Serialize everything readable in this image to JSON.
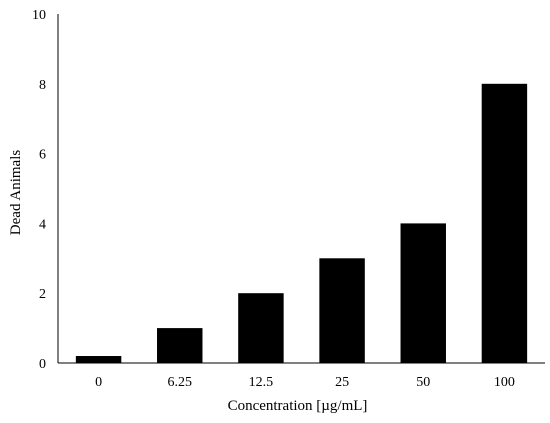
{
  "chart_data": {
    "type": "bar",
    "title": "",
    "xlabel": "Concentration [µg/mL]",
    "ylabel": "Dead Animals",
    "categories": [
      "0",
      "6.25",
      "12.5",
      "25",
      "50",
      "100"
    ],
    "values": [
      0.2,
      1,
      2,
      3,
      4,
      8
    ],
    "ylim": [
      0,
      10
    ],
    "yticks": [
      "0",
      "2",
      "4",
      "6",
      "8",
      "10"
    ],
    "grid": false,
    "legend": "none",
    "bar_color": "#000000"
  }
}
